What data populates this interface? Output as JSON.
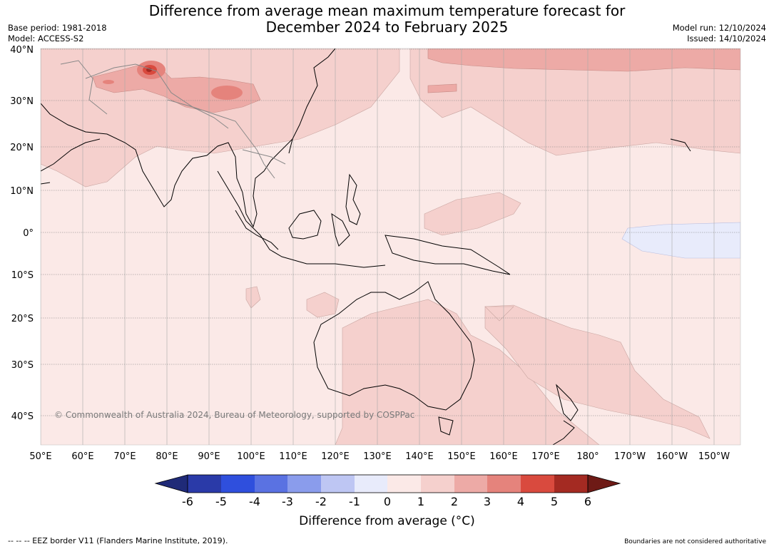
{
  "header": {
    "title_line1": "Difference from average mean maximum temperature forecast for",
    "title_line2": "December 2024 to February 2025",
    "base_period": "Base period: 1981-2018",
    "model": "Model: ACCESS-S2",
    "model_run": "Model run: 12/10/2024",
    "issued": "Issued: 14/10/2024"
  },
  "map": {
    "copyright": "© Commonwealth of Australia 2024, Bureau of Meteorology, supported by COSPPac",
    "lat_labels": [
      "40°N",
      "30°N",
      "20°N",
      "10°N",
      "0°",
      "10°S",
      "20°S",
      "30°S",
      "40°S"
    ],
    "lon_labels": [
      "50°E",
      "60°E",
      "70°E",
      "80°E",
      "90°E",
      "100°E",
      "110°E",
      "120°E",
      "130°E",
      "140°E",
      "150°E",
      "160°E",
      "170°E",
      "180°",
      "170°W",
      "160°W",
      "150°W"
    ],
    "background_color": "#fbe9e7",
    "land_outline_color": "#000000",
    "border_color": "#888888"
  },
  "legend": {
    "title": "Difference from average (°C)",
    "ticks": [
      "-6",
      "-5",
      "-4",
      "-3",
      "-2",
      "-1",
      "0",
      "1",
      "2",
      "3",
      "4",
      "5",
      "6"
    ],
    "colors": [
      "#1f2a78",
      "#2a3aa8",
      "#2f4fdd",
      "#5a72e2",
      "#8a9cec",
      "#bec6f3",
      "#e8ebfb",
      "#fbe9e7",
      "#f5d0cd",
      "#edaaa6",
      "#e5837c",
      "#d94a3e",
      "#a42a22",
      "#6e1a16"
    ]
  },
  "footer": {
    "eez": "--  --  -- EEZ border V11 (Flanders Marine Institute, 2019).",
    "boundaries": "Boundaries are not considered authoritative"
  }
}
